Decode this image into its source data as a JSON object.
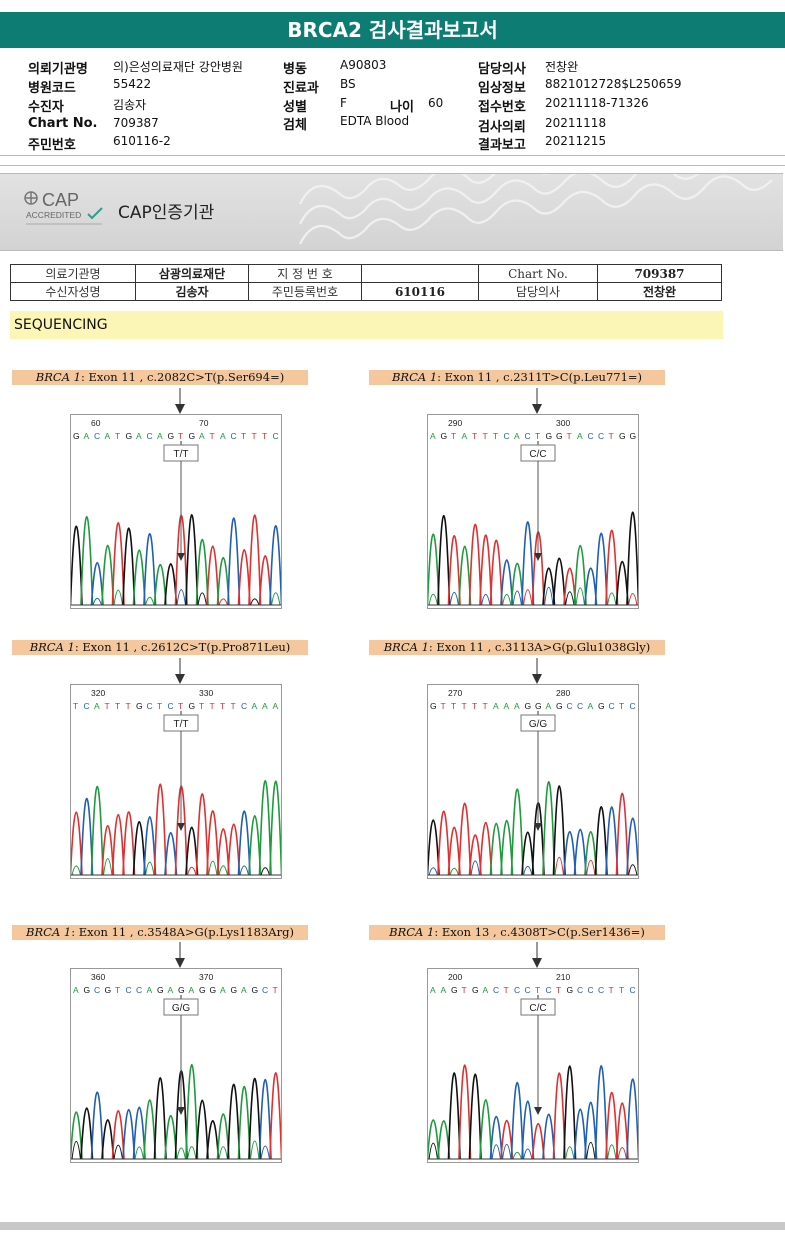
{
  "title": "BRCA2 검사결과보고서",
  "info": {
    "institution": {
      "label": "의뢰기관명",
      "value": "의)은성의료재단 강안병원"
    },
    "hospital_code": {
      "label": "병원코드",
      "value": "55422"
    },
    "patient": {
      "label": "수진자",
      "value": "김송자"
    },
    "chart_no": {
      "label": "Chart No.",
      "value": "709387"
    },
    "resident_no": {
      "label": "주민번호",
      "value": "610116-2"
    },
    "ward": {
      "label": "병동",
      "value": "A90803"
    },
    "department": {
      "label": "진료과",
      "value": "BS"
    },
    "sex": {
      "label": "성별",
      "value": "F"
    },
    "age": {
      "label": "나이",
      "value": "60"
    },
    "specimen": {
      "label": "검체",
      "value": "EDTA Blood"
    },
    "doctor": {
      "label": "담당의사",
      "value": "전창완"
    },
    "clinical_info": {
      "label": "임상정보",
      "value": "8821012728$L250659"
    },
    "receipt_no": {
      "label": "접수번호",
      "value": "20211118-71326"
    },
    "request_date": {
      "label": "검사의뢰",
      "value": "20211118"
    },
    "report_date": {
      "label": "결과보고",
      "value": "20211215"
    }
  },
  "cap": {
    "logo_text": "CAP",
    "accredited": "ACCREDITED",
    "label": "CAP인증기관"
  },
  "patient_table": {
    "row1": [
      "의료기관명",
      "삼광의료재단",
      "지 정 번 호",
      "",
      "Chart No.",
      "709387"
    ],
    "row2": [
      "수신자성명",
      "김송자",
      "주민등록번호",
      "610116",
      "담당의사",
      "전창완"
    ]
  },
  "section_title": "SEQUENCING",
  "colors": {
    "header": "#0d7d73",
    "label_bg": "#f4c89c",
    "seq_bg": "#fbf6b5",
    "A": "#1e9b3c",
    "C": "#1f5fb4",
    "G": "#111111",
    "T": "#e03030"
  },
  "panels": [
    {
      "gene": "BRCA 1",
      "desc": ": Exon 11 , c.2082C>T(p.Ser694=)",
      "pos1": "60",
      "pos2": "70",
      "seq": "GACATGACAGTGATACTTTC",
      "genotype": "T/T"
    },
    {
      "gene": "BRCA 1",
      "desc": ": Exon 11 , c.2311T>C(p.Leu771=)",
      "pos1": "290",
      "pos2": "300",
      "seq": "AGTATTTCACTGGTACCTGG",
      "genotype": "C/C"
    },
    {
      "gene": "BRCA 1",
      "desc": ": Exon 11 , c.2612C>T(p.Pro871Leu)",
      "pos1": "320",
      "pos2": "330",
      "seq": "TCATTTGCTCTGTTTTCAAA",
      "genotype": "T/T"
    },
    {
      "gene": "BRCA 1",
      "desc": ": Exon 11 , c.3113A>G(p.Glu1038Gly)",
      "pos1": "270",
      "pos2": "280",
      "seq": "GTTTTTAAAGGAGCCAGCTC",
      "genotype": "G/G"
    },
    {
      "gene": "BRCA 1",
      "desc": ": Exon 11 , c.3548A>G(p.Lys1183Arg)",
      "pos1": "360",
      "pos2": "370",
      "seq": "AGCGTCCAGAGAGGAGAGCT",
      "genotype": "G/G"
    },
    {
      "gene": "BRCA 1",
      "desc": ": Exon 13 , c.4308T>C(p.Ser1436=)",
      "pos1": "200",
      "pos2": "210",
      "seq": "AAGTGACTCCTCTGCCCTTC",
      "genotype": "C/C"
    }
  ]
}
